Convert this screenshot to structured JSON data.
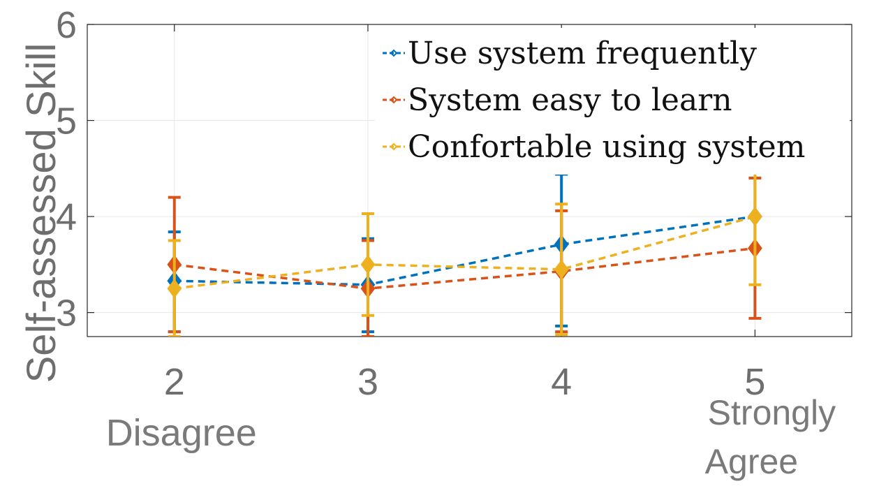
{
  "chart_data": {
    "type": "line",
    "ylabel": "Self-assessed Skill",
    "xlabel": "",
    "title": "",
    "xlim": [
      1.55,
      5.5
    ],
    "ylim": [
      2.75,
      6
    ],
    "xticks": [
      2,
      3,
      4,
      5
    ],
    "yticks": [
      3,
      4,
      5,
      6
    ],
    "category_labels": [
      {
        "x": 2,
        "text": "Disagree"
      },
      {
        "x": 5,
        "text": "Strongly Agree"
      }
    ],
    "grid": true,
    "legend_position": "top-right",
    "series": [
      {
        "name": "Use system frequently",
        "color": "#0072BD",
        "x": [
          2,
          3,
          4,
          5
        ],
        "y": [
          3.33,
          3.29,
          3.71,
          4.0
        ],
        "err_low": [
          2.8,
          2.8,
          2.86,
          4.0
        ],
        "err_high": [
          3.84,
          3.77,
          4.44,
          4.0
        ]
      },
      {
        "name": "System easy to learn",
        "color": "#D95319",
        "x": [
          2,
          3,
          4,
          5
        ],
        "y": [
          3.5,
          3.25,
          3.43,
          3.67
        ],
        "err_low": [
          2.8,
          2.75,
          2.8,
          2.94
        ],
        "err_high": [
          4.2,
          3.75,
          4.06,
          4.4
        ]
      },
      {
        "name": "Confortable using system",
        "color": "#EDB120",
        "x": [
          2,
          3,
          4,
          5
        ],
        "y": [
          3.25,
          3.5,
          3.45,
          4.0
        ],
        "err_low": [
          2.75,
          2.97,
          2.77,
          3.29
        ],
        "err_high": [
          3.75,
          4.03,
          4.13,
          4.71
        ]
      }
    ]
  }
}
